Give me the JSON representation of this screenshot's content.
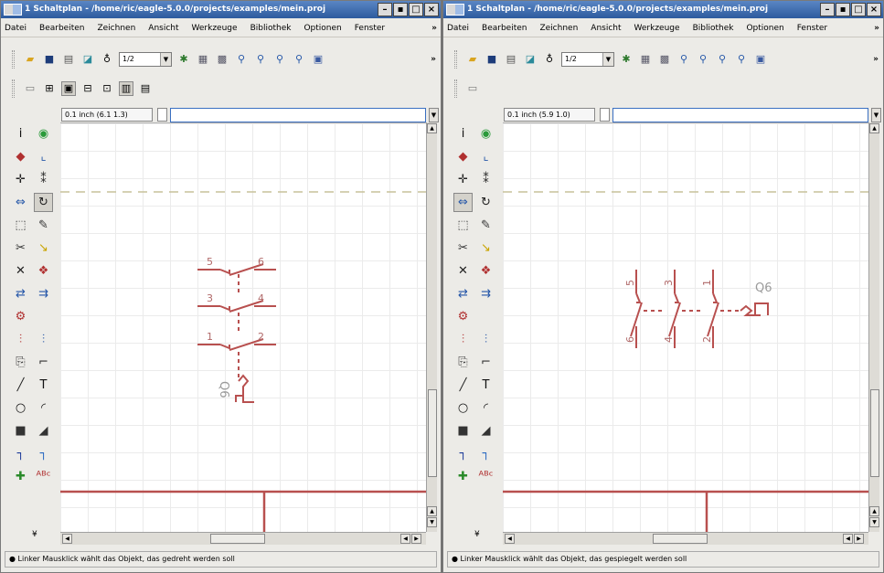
{
  "colors": {
    "net": "#b8504f",
    "part": "#b8504f",
    "titlebar": "#2d5b9e",
    "grid": "#ebebeb"
  },
  "menu": [
    "Datei",
    "Bearbeiten",
    "Zeichnen",
    "Ansicht",
    "Werkzeuge",
    "Bibliothek",
    "Optionen",
    "Fenster"
  ],
  "menu_more": "»",
  "toolbar": {
    "zoom_value": "1/2",
    "more": "»"
  },
  "window_buttons": [
    "–",
    "▪",
    "□",
    "×"
  ],
  "left": {
    "title": "1 Schaltplan - /home/ric/eagle-5.0.0/projects/examples/mein.proj",
    "coord": "0.1 inch (6.1 1.3)",
    "status": "● Linker Mausklick wählt das Objekt, das gedreht werden soll",
    "part_name": "Q6",
    "pins": [
      "5",
      "6",
      "3",
      "4",
      "1",
      "2"
    ]
  },
  "right": {
    "title": "1 Schaltplan - /home/ric/eagle-5.0.0/projects/examples/mein.proj",
    "coord": "0.1 inch (5.9 1.0)",
    "status": "● Linker Mausklick wählt das Objekt, das gespiegelt werden soll",
    "part_name": "Q6",
    "pins": [
      "5",
      "3",
      "1",
      "6",
      "4",
      "2"
    ]
  },
  "palette_icons": [
    "info-icon",
    "show-icon",
    "display-icon",
    "mark-icon",
    "move-icon",
    "copy-icon",
    "mirror-icon",
    "rotate-icon",
    "group-icon",
    "change-icon",
    "cut-icon",
    "paste-icon",
    "delete-icon",
    "add-icon",
    "pinswap-icon",
    "replace-icon",
    "name-icon",
    "split-icon",
    "miter-icon",
    "smash-icon",
    "value-icon",
    "wire-icon",
    "text-icon",
    "circle-icon",
    "arc-icon",
    "rect-icon",
    "polygon-icon",
    "bus-icon",
    "net-icon",
    "junction-icon",
    "label-icon"
  ],
  "palette_labels": {
    "text": "T",
    "label": "ABC"
  },
  "palette_more": "¥"
}
